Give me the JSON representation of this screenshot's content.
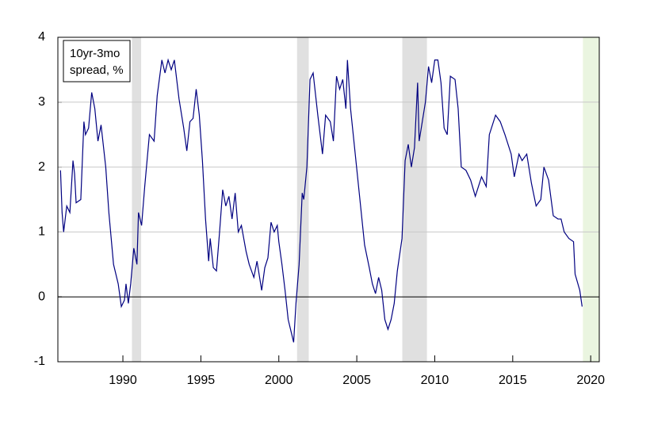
{
  "chart_data": {
    "type": "line",
    "annotation": [
      "10yr-3mo",
      "spread, %"
    ],
    "x": [
      1986.0,
      1986.1,
      1986.2,
      1986.4,
      1986.6,
      1986.8,
      1986.9,
      1987.0,
      1987.3,
      1987.5,
      1987.6,
      1987.8,
      1988.0,
      1988.2,
      1988.4,
      1988.6,
      1988.9,
      1989.1,
      1989.4,
      1989.7,
      1989.9,
      1990.1,
      1990.2,
      1990.35,
      1990.5,
      1990.7,
      1990.9,
      1991.0,
      1991.2,
      1991.4,
      1991.7,
      1992.0,
      1992.2,
      1992.5,
      1992.7,
      1992.9,
      1993.1,
      1993.3,
      1993.6,
      1993.9,
      1994.1,
      1994.3,
      1994.5,
      1994.7,
      1994.9,
      1995.1,
      1995.3,
      1995.5,
      1995.6,
      1995.8,
      1996.0,
      1996.2,
      1996.4,
      1996.6,
      1996.8,
      1997.0,
      1997.2,
      1997.4,
      1997.6,
      1997.9,
      1998.1,
      1998.4,
      1998.6,
      1998.9,
      1999.1,
      1999.3,
      1999.5,
      1999.7,
      1999.9,
      2000.0,
      2000.2,
      2000.4,
      2000.6,
      2000.8,
      2000.95,
      2001.1,
      2001.3,
      2001.5,
      2001.6,
      2001.8,
      2002.0,
      2002.2,
      2002.5,
      2002.8,
      2003.0,
      2003.3,
      2003.5,
      2003.7,
      2003.9,
      2004.1,
      2004.3,
      2004.4,
      2004.6,
      2004.9,
      2005.2,
      2005.5,
      2005.8,
      2006.0,
      2006.2,
      2006.4,
      2006.6,
      2006.8,
      2007.0,
      2007.2,
      2007.4,
      2007.6,
      2007.9,
      2008.1,
      2008.3,
      2008.5,
      2008.7,
      2008.9,
      2009.0,
      2009.2,
      2009.4,
      2009.6,
      2009.8,
      2010.0,
      2010.2,
      2010.4,
      2010.6,
      2010.8,
      2011.0,
      2011.3,
      2011.5,
      2011.7,
      2012.0,
      2012.3,
      2012.6,
      2012.8,
      2013.0,
      2013.3,
      2013.5,
      2013.9,
      2014.2,
      2014.5,
      2014.9,
      2015.1,
      2015.4,
      2015.6,
      2015.9,
      2016.2,
      2016.5,
      2016.8,
      2017.0,
      2017.3,
      2017.6,
      2017.9,
      2018.1,
      2018.3,
      2018.6,
      2018.9,
      2019.0,
      2019.3,
      2019.45
    ],
    "series": [
      {
        "color": "#000080",
        "values": [
          1.95,
          1.3,
          1.0,
          1.4,
          1.3,
          2.1,
          1.9,
          1.45,
          1.5,
          2.7,
          2.5,
          2.6,
          3.15,
          2.9,
          2.4,
          2.65,
          2.0,
          1.3,
          0.5,
          0.2,
          -0.15,
          -0.05,
          0.2,
          -0.1,
          0.2,
          0.75,
          0.5,
          1.3,
          1.1,
          1.7,
          2.5,
          2.4,
          3.1,
          3.65,
          3.45,
          3.65,
          3.5,
          3.65,
          3.05,
          2.6,
          2.25,
          2.7,
          2.75,
          3.2,
          2.8,
          2.1,
          1.2,
          0.55,
          0.9,
          0.45,
          0.4,
          1.0,
          1.65,
          1.4,
          1.55,
          1.2,
          1.6,
          1.0,
          1.1,
          0.7,
          0.5,
          0.3,
          0.55,
          0.1,
          0.45,
          0.6,
          1.15,
          1.0,
          1.1,
          0.85,
          0.5,
          0.1,
          -0.35,
          -0.55,
          -0.7,
          -0.1,
          0.5,
          1.6,
          1.5,
          2.0,
          3.35,
          3.45,
          2.8,
          2.2,
          2.8,
          2.7,
          2.4,
          3.4,
          3.2,
          3.35,
          2.9,
          3.65,
          2.9,
          2.2,
          1.5,
          0.8,
          0.45,
          0.2,
          0.05,
          0.3,
          0.1,
          -0.35,
          -0.5,
          -0.35,
          -0.1,
          0.4,
          0.9,
          2.1,
          2.35,
          2.0,
          2.3,
          3.3,
          2.4,
          2.7,
          3.0,
          3.55,
          3.3,
          3.65,
          3.65,
          3.3,
          2.6,
          2.5,
          3.4,
          3.35,
          2.9,
          2.0,
          1.95,
          1.8,
          1.55,
          1.7,
          1.85,
          1.7,
          2.5,
          2.8,
          2.7,
          2.5,
          2.2,
          1.85,
          2.2,
          2.1,
          2.2,
          1.75,
          1.4,
          1.5,
          2.0,
          1.8,
          1.25,
          1.2,
          1.2,
          1.0,
          0.9,
          0.85,
          0.35,
          0.1,
          -0.15
        ]
      }
    ],
    "recessions": [
      [
        1990.58,
        1991.17
      ],
      [
        2001.17,
        2001.92
      ],
      [
        2007.92,
        2009.5
      ]
    ],
    "recession_color": "#e0e0e0",
    "forecast_region": [
      2019.5,
      2020.55
    ],
    "forecast_color": "#eaf5e0",
    "xlim": [
      1985.83,
      2020.55
    ],
    "xticks": [
      1990,
      1995,
      2000,
      2005,
      2010,
      2015,
      2020
    ],
    "ylim": [
      -1,
      4
    ],
    "yticks": [
      -1,
      0,
      1,
      2,
      3,
      4
    ],
    "grid": true
  }
}
